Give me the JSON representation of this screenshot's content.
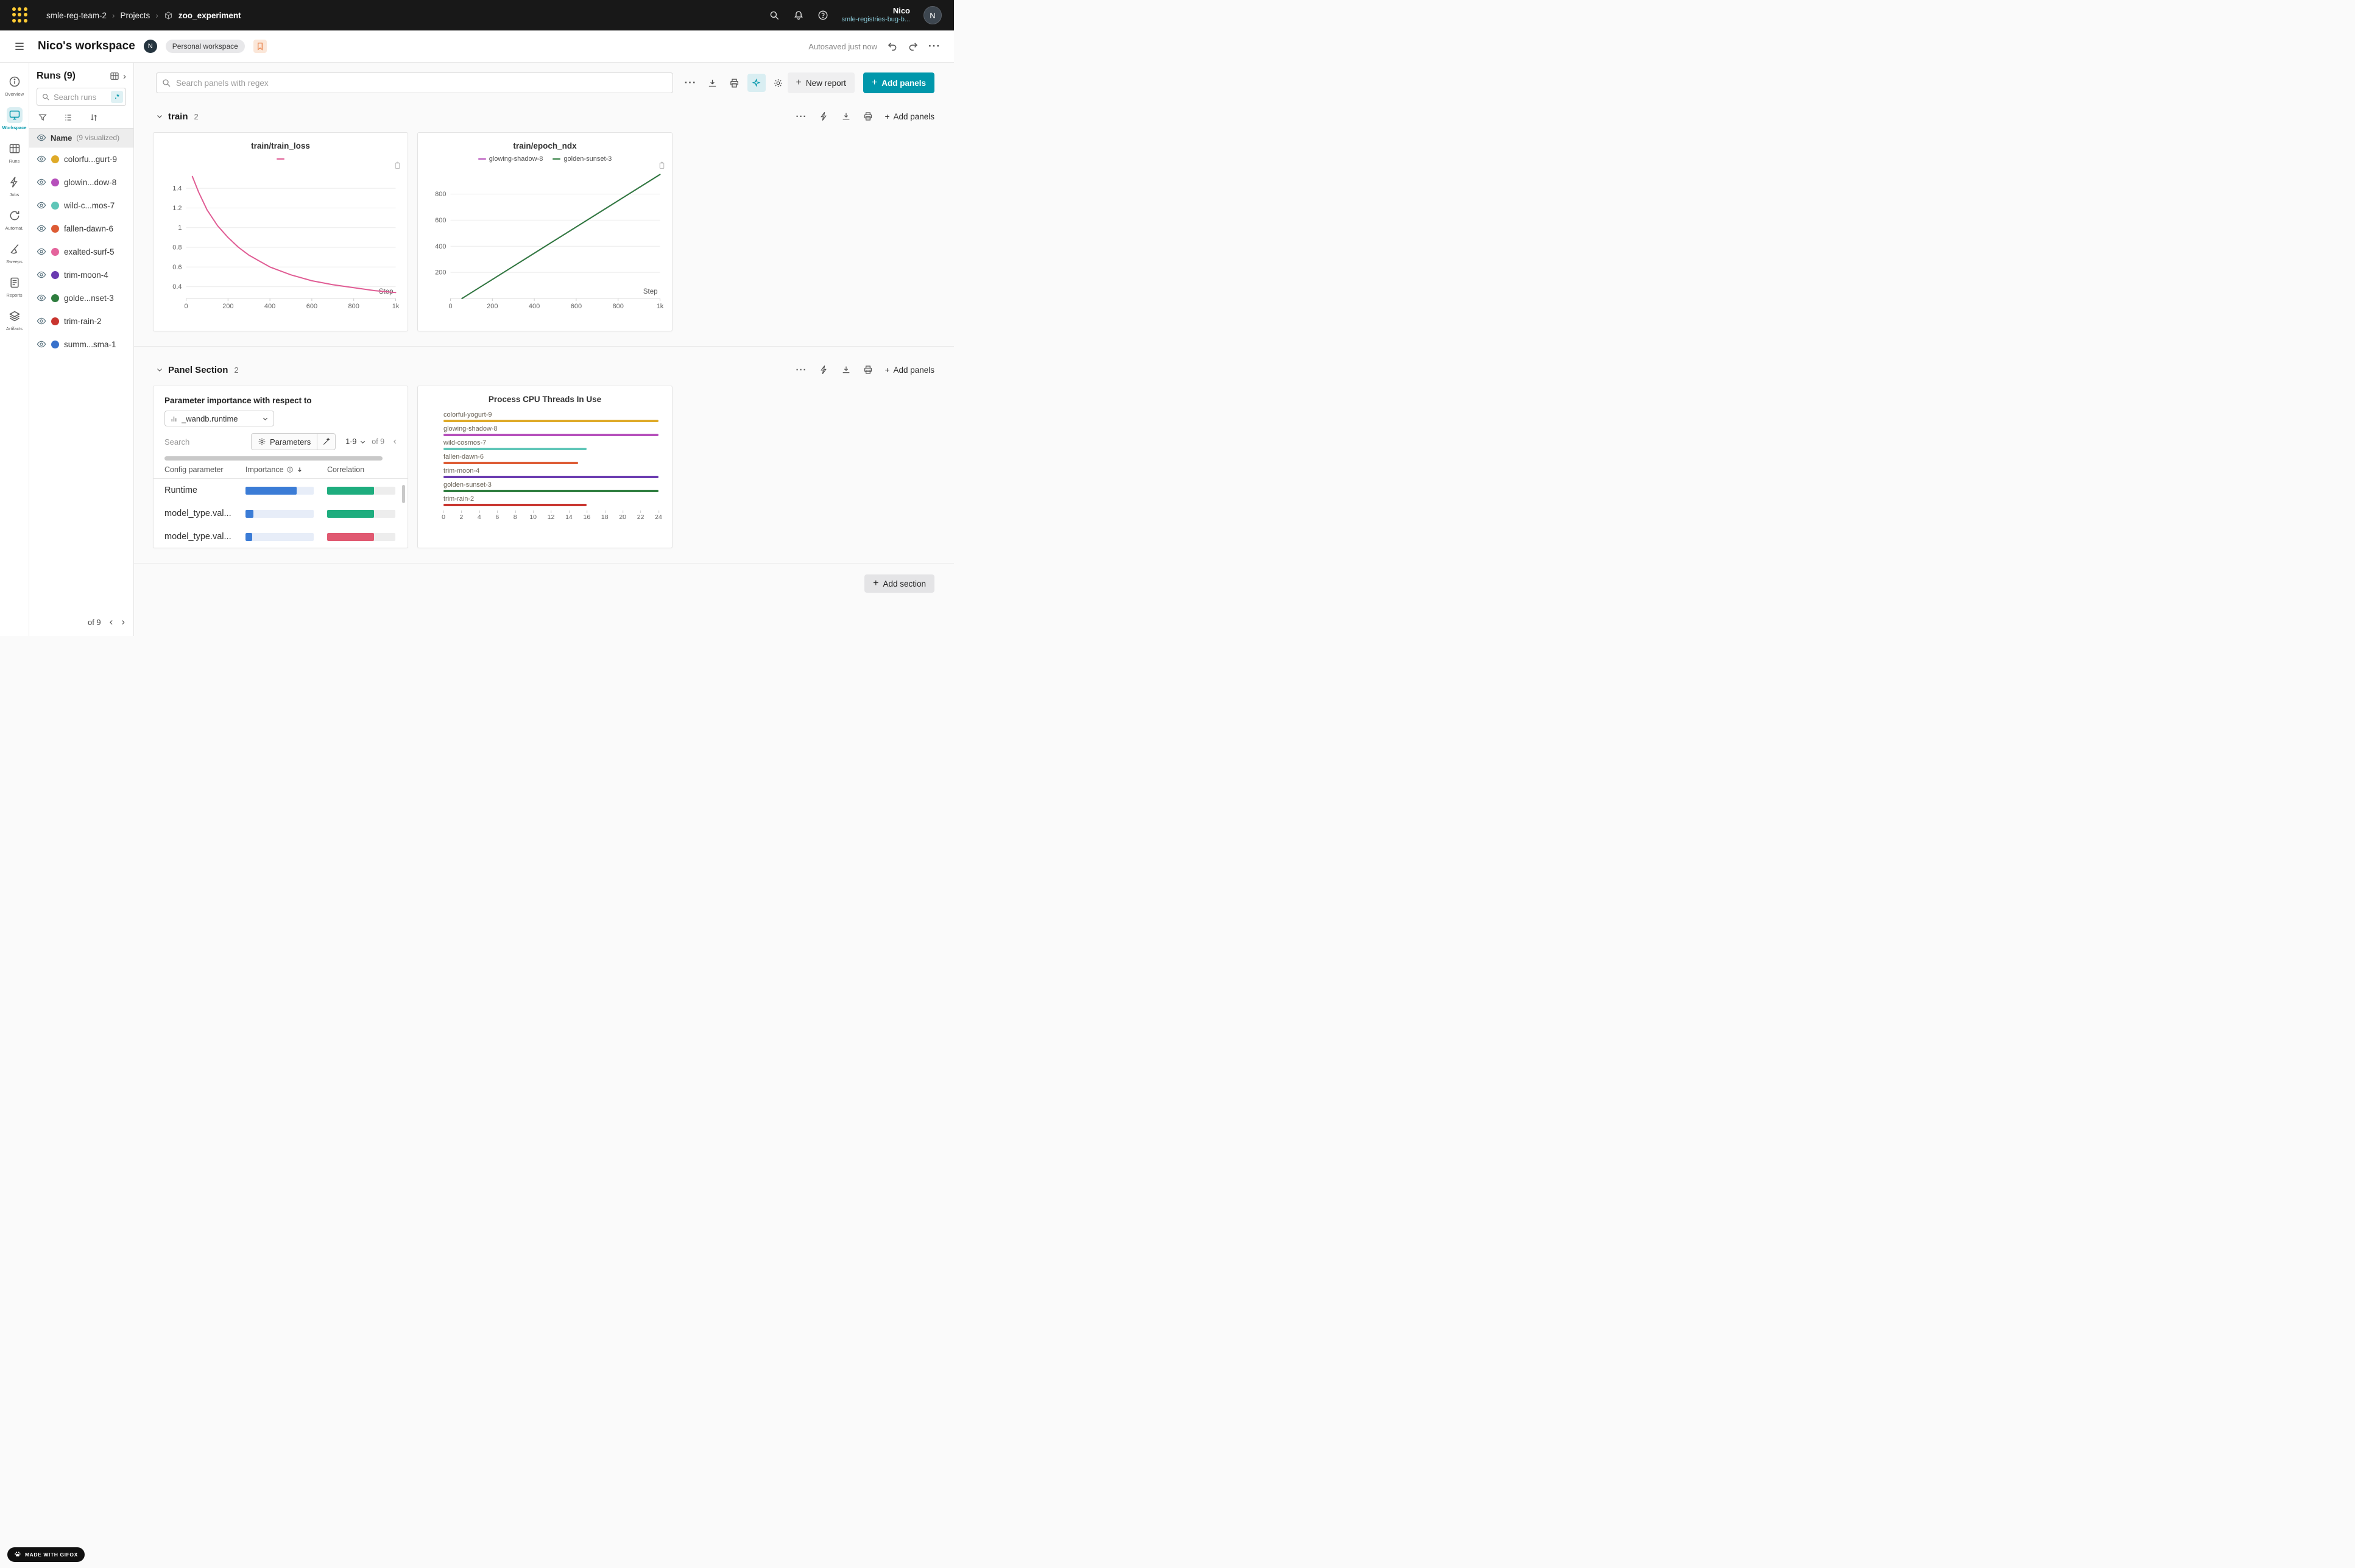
{
  "accent": {
    "teal": "#0097ab",
    "teal_light": "#d9eef2"
  },
  "icons": {
    "more": "···",
    "chevron_right": "›",
    "chevron_left": "‹",
    "paginate_prev": "‹",
    "paginate_next": "›"
  },
  "topnav": {
    "breadcrumb": {
      "team": "smle-reg-team-2",
      "section": "Projects",
      "project": "zoo_experiment"
    },
    "user_name": "Nico",
    "user_org": "smle-registries-bug-b...",
    "avatar_initial": "N"
  },
  "header": {
    "title": "Nico's workspace",
    "owner_initial": "N",
    "workspace_type": "Personal workspace",
    "autosave_status": "Autosaved just now"
  },
  "nav_rail": {
    "items": [
      {
        "label": "Overview",
        "icon": "overview",
        "active": false
      },
      {
        "label": "Workspace",
        "icon": "workspace",
        "active": true
      },
      {
        "label": "Runs",
        "icon": "runs",
        "active": false
      },
      {
        "label": "Jobs",
        "icon": "jobs",
        "active": false
      },
      {
        "label": "Automat.",
        "icon": "automations",
        "active": false
      },
      {
        "label": "Sweeps",
        "icon": "sweeps",
        "active": false
      },
      {
        "label": "Reports",
        "icon": "reports",
        "active": false
      },
      {
        "label": "Artifacts",
        "icon": "artifacts",
        "active": false
      }
    ]
  },
  "runs_panel": {
    "title": "Runs (9)",
    "search_placeholder": "Search runs",
    "regex_toggle": ".*",
    "name_header": "Name",
    "name_header_note": "(9 visualized)",
    "runs": [
      {
        "display": "colorfu...gurt-9",
        "color": "#dfaa28"
      },
      {
        "display": "glowin...dow-8",
        "color": "#b650bb"
      },
      {
        "display": "wild-c...mos-7",
        "color": "#5fc6b8"
      },
      {
        "display": "fallen-dawn-6",
        "color": "#dd5b34"
      },
      {
        "display": "exalted-surf-5",
        "color": "#e4649c"
      },
      {
        "display": "trim-moon-4",
        "color": "#6a3bb0"
      },
      {
        "display": "golde...nset-3",
        "color": "#2e7d3e"
      },
      {
        "display": "trim-rain-2",
        "color": "#c9352f"
      },
      {
        "display": "summ...sma-1",
        "color": "#3871cb"
      }
    ],
    "pagination_of": "of 9"
  },
  "watermark": "MADE WITH GIFOX",
  "toolbar": {
    "search_placeholder": "Search panels with regex",
    "new_report": "New report",
    "add_panels": "Add panels"
  },
  "sections": [
    {
      "name": "train",
      "count": "2",
      "add_panels": "Add panels"
    },
    {
      "name": "Panel Section",
      "count": "2",
      "add_panels": "Add panels"
    }
  ],
  "importance_panel": {
    "title": "Parameter importance with respect to",
    "metric": "_wandb.runtime",
    "search_placeholder": "Search",
    "parameters_button": "Parameters",
    "page_range": "1-9",
    "page_of": "of 9",
    "columns": {
      "parameter": "Config parameter",
      "importance": "Importance",
      "correlation": "Correlation"
    }
  },
  "add_section_label": "Add section",
  "chart_data": [
    {
      "id": "train_loss",
      "type": "line",
      "title": "train/train_loss",
      "xlabel": "Step",
      "xlim": [
        0,
        1000
      ],
      "ylim": [
        0.28,
        1.58
      ],
      "xticks": [
        0,
        200,
        400,
        600,
        800,
        1000
      ],
      "xtick_labels": [
        "0",
        "200",
        "400",
        "600",
        "800",
        "1k"
      ],
      "yticks": [
        0.4,
        0.6,
        0.8,
        1.0,
        1.2,
        1.4
      ],
      "ytick_labels": [
        "0.4",
        "0.6",
        "0.8",
        "1",
        "1.2",
        "1.4"
      ],
      "legend": [
        {
          "name": "",
          "color": "#e05c94"
        }
      ],
      "series": [
        {
          "name": "train_loss",
          "color": "#e05c94",
          "x": [
            30,
            60,
            100,
            150,
            200,
            250,
            300,
            350,
            400,
            500,
            600,
            700,
            800,
            900,
            1000
          ],
          "y": [
            1.52,
            1.36,
            1.18,
            1.02,
            0.9,
            0.8,
            0.72,
            0.66,
            0.6,
            0.52,
            0.46,
            0.42,
            0.39,
            0.36,
            0.34
          ]
        }
      ]
    },
    {
      "id": "epoch_ndx",
      "type": "line",
      "title": "train/epoch_ndx",
      "xlabel": "Step",
      "xlim": [
        0,
        1000
      ],
      "ylim": [
        0,
        980
      ],
      "xticks": [
        0,
        200,
        400,
        600,
        800,
        1000
      ],
      "xtick_labels": [
        "0",
        "200",
        "400",
        "600",
        "800",
        "1k"
      ],
      "yticks": [
        200,
        400,
        600,
        800
      ],
      "ytick_labels": [
        "200",
        "400",
        "600",
        "800"
      ],
      "legend": [
        {
          "name": "glowing-shadow-8",
          "color": "#b650bb"
        },
        {
          "name": "golden-sunset-3",
          "color": "#2e7d3e"
        }
      ],
      "series": [
        {
          "name": "glowing-shadow-8",
          "color": "#b650bb",
          "x": [
            55,
            1000
          ],
          "y": [
            0,
            950
          ]
        },
        {
          "name": "golden-sunset-3",
          "color": "#2e7d3e",
          "x": [
            55,
            1000
          ],
          "y": [
            0,
            950
          ]
        }
      ]
    },
    {
      "id": "cpu_threads",
      "type": "bar",
      "orientation": "horizontal",
      "title": "Process CPU Threads In Use",
      "xlim": [
        0,
        24
      ],
      "xticks": [
        0,
        2,
        4,
        6,
        8,
        10,
        12,
        14,
        16,
        18,
        20,
        22,
        24
      ],
      "categories": [
        "colorful-yogurt-9",
        "glowing-shadow-8",
        "wild-cosmos-7",
        "fallen-dawn-6",
        "trim-moon-4",
        "golden-sunset-3",
        "trim-rain-2"
      ],
      "values": [
        24,
        24,
        16,
        15,
        24,
        24,
        16
      ],
      "colors": [
        "#dfaa28",
        "#b650bb",
        "#5fc6b8",
        "#dd5b34",
        "#6a3bb0",
        "#2e7d3e",
        "#c9352f"
      ]
    },
    {
      "id": "param_importance",
      "type": "table",
      "columns": [
        "Config parameter",
        "Importance",
        "Correlation"
      ],
      "rows": [
        {
          "parameter": "Runtime",
          "importance": 0.75,
          "importance_color": "#3b7cd6",
          "correlation": 0.69,
          "correlation_color": "#1ead7e"
        },
        {
          "parameter": "model_type.val...",
          "importance": 0.12,
          "importance_color": "#3b7cd6",
          "correlation": 0.69,
          "correlation_color": "#1ead7e"
        },
        {
          "parameter": "model_type.val...",
          "importance": 0.1,
          "importance_color": "#3b7cd6",
          "correlation": 0.69,
          "correlation_color": "#e05971"
        }
      ]
    }
  ]
}
